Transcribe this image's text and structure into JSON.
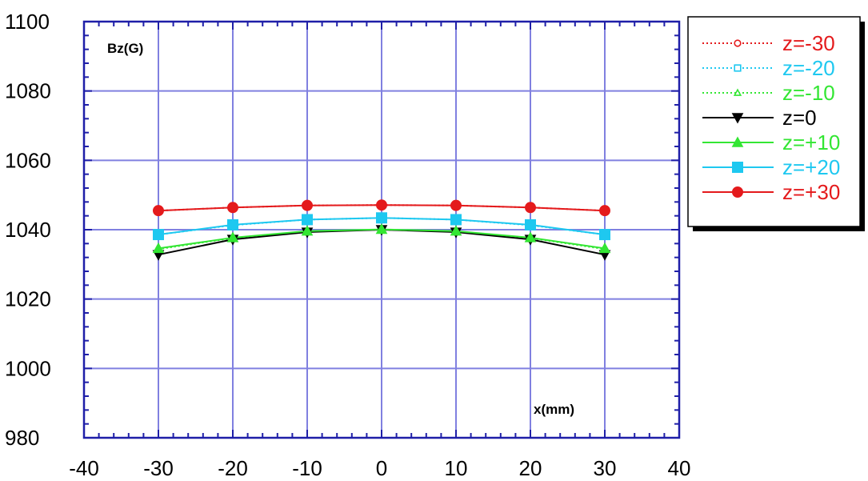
{
  "chart_data": {
    "type": "line",
    "ylabel": "Bz(G)",
    "xlabel": "x(mm)",
    "xlim": [
      -40,
      40
    ],
    "ylim": [
      980,
      1100
    ],
    "xticks": [
      -40,
      -30,
      -20,
      -10,
      0,
      10,
      20,
      30,
      40
    ],
    "yticks": [
      980,
      1000,
      1020,
      1040,
      1060,
      1080,
      1100
    ],
    "grid": true,
    "legend_position": "top-right, outside plot",
    "series": [
      {
        "name": "z=-30",
        "color": "#e41a1c",
        "style": "dotted",
        "marker": "open-circle",
        "x": [
          -30,
          -20,
          -10,
          0,
          10,
          20,
          30
        ],
        "y": [
          1045.5,
          1046.4,
          1047.0,
          1047.1,
          1047.0,
          1046.4,
          1045.5
        ]
      },
      {
        "name": "z=-20",
        "color": "#1ec8f0",
        "style": "dotted",
        "marker": "open-square",
        "x": [
          -30,
          -20,
          -10,
          0,
          10,
          20,
          30
        ],
        "y": [
          1038.6,
          1041.3,
          1042.9,
          1043.4,
          1042.9,
          1041.3,
          1038.6
        ]
      },
      {
        "name": "z=-10",
        "color": "#33e633",
        "style": "dotted",
        "marker": "open-triangle",
        "x": [
          -30,
          -20,
          -10,
          0,
          10,
          20,
          30
        ],
        "y": [
          1034.4,
          1037.6,
          1039.5,
          1040.0,
          1039.5,
          1037.6,
          1034.4
        ]
      },
      {
        "name": "z=0",
        "color": "#000000",
        "style": "solid",
        "marker": "filled-triangle-down",
        "x": [
          -30,
          -20,
          -10,
          0,
          10,
          20,
          30
        ],
        "y": [
          1032.8,
          1037.2,
          1039.3,
          1040.0,
          1039.3,
          1037.2,
          1032.8
        ]
      },
      {
        "name": "z=+10",
        "color": "#33e633",
        "style": "solid",
        "marker": "filled-triangle",
        "x": [
          -30,
          -20,
          -10,
          0,
          10,
          20,
          30
        ],
        "y": [
          1034.6,
          1037.7,
          1039.6,
          1040.1,
          1039.6,
          1037.7,
          1034.6
        ]
      },
      {
        "name": "z=+20",
        "color": "#1ec8f0",
        "style": "solid",
        "marker": "filled-square",
        "x": [
          -30,
          -20,
          -10,
          0,
          10,
          20,
          30
        ],
        "y": [
          1038.6,
          1041.4,
          1042.9,
          1043.4,
          1042.9,
          1041.4,
          1038.6
        ]
      },
      {
        "name": "z=+30",
        "color": "#e41a1c",
        "style": "solid",
        "marker": "filled-circle",
        "x": [
          -30,
          -20,
          -10,
          0,
          10,
          20,
          30
        ],
        "y": [
          1045.5,
          1046.4,
          1047.0,
          1047.1,
          1047.0,
          1046.4,
          1045.5
        ]
      }
    ]
  },
  "colors": {
    "grid": "#8080e0",
    "frame": "#1f1fa8"
  }
}
